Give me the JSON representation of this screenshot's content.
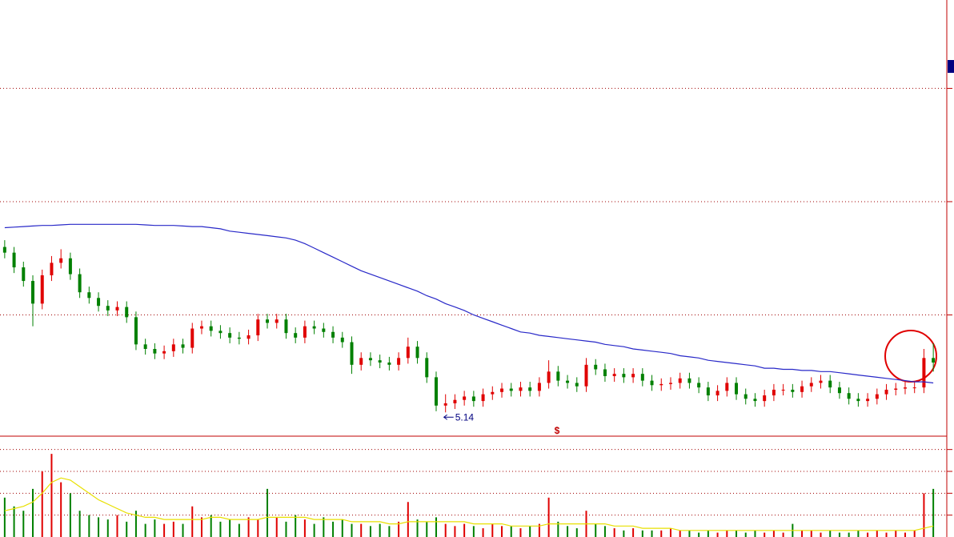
{
  "chart_data": [
    {
      "type": "candlestick",
      "open": [
        6.6,
        6.55,
        6.42,
        6.3,
        6.1,
        6.35,
        6.46,
        6.5,
        6.36,
        6.2,
        6.15,
        6.08,
        6.04,
        6.07,
        5.98,
        5.74,
        5.7,
        5.66,
        5.68,
        5.74,
        5.71,
        5.88,
        5.9,
        5.86,
        5.84,
        5.8,
        5.79,
        5.82,
        5.96,
        5.93,
        5.96,
        5.84,
        5.8,
        5.9,
        5.88,
        5.85,
        5.8,
        5.76,
        5.56,
        5.62,
        5.6,
        5.58,
        5.56,
        5.62,
        5.72,
        5.62,
        5.45,
        5.2,
        5.22,
        5.25,
        5.28,
        5.24,
        5.3,
        5.32,
        5.35,
        5.33,
        5.36,
        5.33,
        5.4,
        5.5,
        5.42,
        5.4,
        5.37,
        5.56,
        5.52,
        5.46,
        5.48,
        5.45,
        5.48,
        5.42,
        5.38,
        5.39,
        5.4,
        5.44,
        5.4,
        5.36,
        5.29,
        5.33,
        5.4,
        5.3,
        5.26,
        5.24,
        5.29,
        5.34,
        5.34,
        5.32,
        5.37,
        5.4,
        5.42,
        5.36,
        5.31,
        5.26,
        5.24,
        5.26,
        5.3,
        5.34,
        5.35,
        5.36,
        5.36,
        5.62
      ],
      "high": [
        6.66,
        6.6,
        6.47,
        6.35,
        6.4,
        6.52,
        6.58,
        6.55,
        6.41,
        6.25,
        6.2,
        6.13,
        6.12,
        6.12,
        6.03,
        5.79,
        5.75,
        5.73,
        5.79,
        5.79,
        5.93,
        5.95,
        5.95,
        5.91,
        5.89,
        5.85,
        5.87,
        6.01,
        6.01,
        6.01,
        6.01,
        5.89,
        5.95,
        5.95,
        5.93,
        5.9,
        5.85,
        5.81,
        5.67,
        5.67,
        5.65,
        5.63,
        5.67,
        5.8,
        5.77,
        5.67,
        5.5,
        5.3,
        5.3,
        5.33,
        5.33,
        5.35,
        5.37,
        5.4,
        5.4,
        5.41,
        5.41,
        5.45,
        5.6,
        5.55,
        5.47,
        5.45,
        5.62,
        5.61,
        5.57,
        5.53,
        5.53,
        5.53,
        5.53,
        5.47,
        5.44,
        5.45,
        5.49,
        5.49,
        5.45,
        5.41,
        5.38,
        5.45,
        5.45,
        5.35,
        5.31,
        5.34,
        5.39,
        5.39,
        5.39,
        5.42,
        5.45,
        5.47,
        5.47,
        5.41,
        5.36,
        5.31,
        5.31,
        5.35,
        5.39,
        5.4,
        5.41,
        5.41,
        5.7,
        5.75
      ],
      "low": [
        6.5,
        6.37,
        6.25,
        5.9,
        6.05,
        6.3,
        6.41,
        6.31,
        6.15,
        6.1,
        6.03,
        5.99,
        5.99,
        5.93,
        5.69,
        5.65,
        5.61,
        5.61,
        5.63,
        5.66,
        5.66,
        5.83,
        5.81,
        5.79,
        5.75,
        5.74,
        5.74,
        5.77,
        5.88,
        5.88,
        5.79,
        5.75,
        5.75,
        5.83,
        5.8,
        5.75,
        5.71,
        5.48,
        5.51,
        5.55,
        5.53,
        5.51,
        5.51,
        5.57,
        5.57,
        5.4,
        5.15,
        5.14,
        5.17,
        5.2,
        5.19,
        5.19,
        5.25,
        5.27,
        5.28,
        5.28,
        5.28,
        5.28,
        5.35,
        5.37,
        5.35,
        5.32,
        5.32,
        5.47,
        5.41,
        5.41,
        5.4,
        5.4,
        5.37,
        5.33,
        5.33,
        5.34,
        5.35,
        5.35,
        5.31,
        5.24,
        5.24,
        5.28,
        5.25,
        5.21,
        5.19,
        5.19,
        5.24,
        5.29,
        5.27,
        5.27,
        5.32,
        5.35,
        5.31,
        5.26,
        5.21,
        5.19,
        5.19,
        5.21,
        5.25,
        5.29,
        5.3,
        5.31,
        5.31,
        5.5
      ],
      "close": [
        6.55,
        6.42,
        6.3,
        6.1,
        6.35,
        6.46,
        6.5,
        6.36,
        6.2,
        6.15,
        6.08,
        6.04,
        6.07,
        5.98,
        5.74,
        5.7,
        5.66,
        5.68,
        5.74,
        5.71,
        5.88,
        5.9,
        5.86,
        5.84,
        5.8,
        5.79,
        5.82,
        5.96,
        5.93,
        5.96,
        5.84,
        5.8,
        5.9,
        5.88,
        5.85,
        5.8,
        5.76,
        5.56,
        5.62,
        5.6,
        5.58,
        5.56,
        5.62,
        5.72,
        5.62,
        5.45,
        5.2,
        5.22,
        5.25,
        5.28,
        5.24,
        5.3,
        5.32,
        5.35,
        5.33,
        5.36,
        5.33,
        5.4,
        5.5,
        5.42,
        5.4,
        5.37,
        5.56,
        5.52,
        5.46,
        5.48,
        5.45,
        5.48,
        5.42,
        5.38,
        5.39,
        5.4,
        5.44,
        5.4,
        5.36,
        5.29,
        5.33,
        5.4,
        5.3,
        5.26,
        5.24,
        5.29,
        5.34,
        5.34,
        5.32,
        5.37,
        5.4,
        5.42,
        5.36,
        5.31,
        5.26,
        5.24,
        5.26,
        5.3,
        5.34,
        5.35,
        5.36,
        5.36,
        5.62,
        5.58
      ],
      "up_color": "#e00000",
      "down_color": "#008000",
      "moving_average": {
        "color": "#2828c8",
        "values": [
          6.77,
          6.775,
          6.78,
          6.785,
          6.79,
          6.79,
          6.795,
          6.8,
          6.8,
          6.8,
          6.8,
          6.8,
          6.8,
          6.8,
          6.8,
          6.795,
          6.79,
          6.79,
          6.79,
          6.785,
          6.78,
          6.78,
          6.77,
          6.76,
          6.74,
          6.73,
          6.72,
          6.71,
          6.7,
          6.69,
          6.68,
          6.66,
          6.63,
          6.59,
          6.55,
          6.51,
          6.47,
          6.43,
          6.39,
          6.36,
          6.33,
          6.3,
          6.27,
          6.24,
          6.21,
          6.17,
          6.14,
          6.1,
          6.07,
          6.04,
          6.0,
          5.97,
          5.94,
          5.91,
          5.88,
          5.85,
          5.84,
          5.82,
          5.81,
          5.8,
          5.79,
          5.78,
          5.77,
          5.76,
          5.74,
          5.73,
          5.72,
          5.7,
          5.69,
          5.68,
          5.67,
          5.66,
          5.64,
          5.63,
          5.62,
          5.6,
          5.59,
          5.58,
          5.57,
          5.56,
          5.55,
          5.53,
          5.53,
          5.52,
          5.52,
          5.51,
          5.51,
          5.5,
          5.5,
          5.49,
          5.48,
          5.47,
          5.46,
          5.45,
          5.44,
          5.43,
          5.42,
          5.41,
          5.41,
          5.4
        ]
      },
      "ylim": [
        4.93,
        8.78
      ],
      "yticks": [
        6,
        7,
        8
      ],
      "grid": true,
      "marker": "$"
    },
    {
      "type": "bar",
      "values": [
        18,
        14,
        12,
        22,
        30,
        38,
        25,
        20,
        12,
        10,
        9,
        8,
        10,
        7,
        12,
        6,
        8,
        6,
        7,
        6,
        14,
        9,
        10,
        7,
        8,
        6,
        9,
        8,
        22,
        9,
        7,
        10,
        8,
        6,
        9,
        7,
        8,
        6,
        6,
        5,
        6,
        5,
        7,
        16,
        8,
        7,
        9,
        6,
        5,
        6,
        5,
        4,
        6,
        5,
        5,
        4,
        5,
        6,
        18,
        7,
        5,
        4,
        12,
        6,
        5,
        4,
        3,
        4,
        3,
        3,
        3,
        4,
        3,
        3,
        2,
        3,
        2,
        3,
        3,
        2,
        3,
        2,
        3,
        2,
        6,
        3,
        3,
        2,
        3,
        2,
        2,
        3,
        2,
        3,
        2,
        3,
        2,
        3,
        20,
        22
      ],
      "moving_average": {
        "color": "#e8e000",
        "values": [
          12,
          13,
          14,
          16,
          20,
          25,
          27,
          26,
          23,
          20,
          17,
          15,
          13,
          11,
          10,
          9,
          9,
          8,
          8,
          8,
          8,
          8,
          9,
          9,
          8,
          8,
          8,
          8,
          9,
          9,
          9,
          9,
          9,
          8,
          8,
          8,
          8,
          7,
          7,
          7,
          7,
          6,
          6,
          7,
          7,
          7,
          7,
          7,
          7,
          7,
          6,
          6,
          6,
          6,
          5,
          5,
          5,
          5,
          6,
          6,
          6,
          6,
          6,
          6,
          6,
          5,
          5,
          5,
          4,
          4,
          4,
          4,
          3,
          3,
          3,
          3,
          3,
          3,
          3,
          3,
          3,
          3,
          3,
          3,
          3,
          3,
          3,
          3,
          3,
          3,
          3,
          3,
          3,
          3,
          3,
          3,
          3,
          3,
          4,
          5
        ]
      },
      "ylim": [
        0,
        45
      ],
      "yticks": [
        10,
        20,
        30,
        40
      ],
      "grid": true
    }
  ]
}
